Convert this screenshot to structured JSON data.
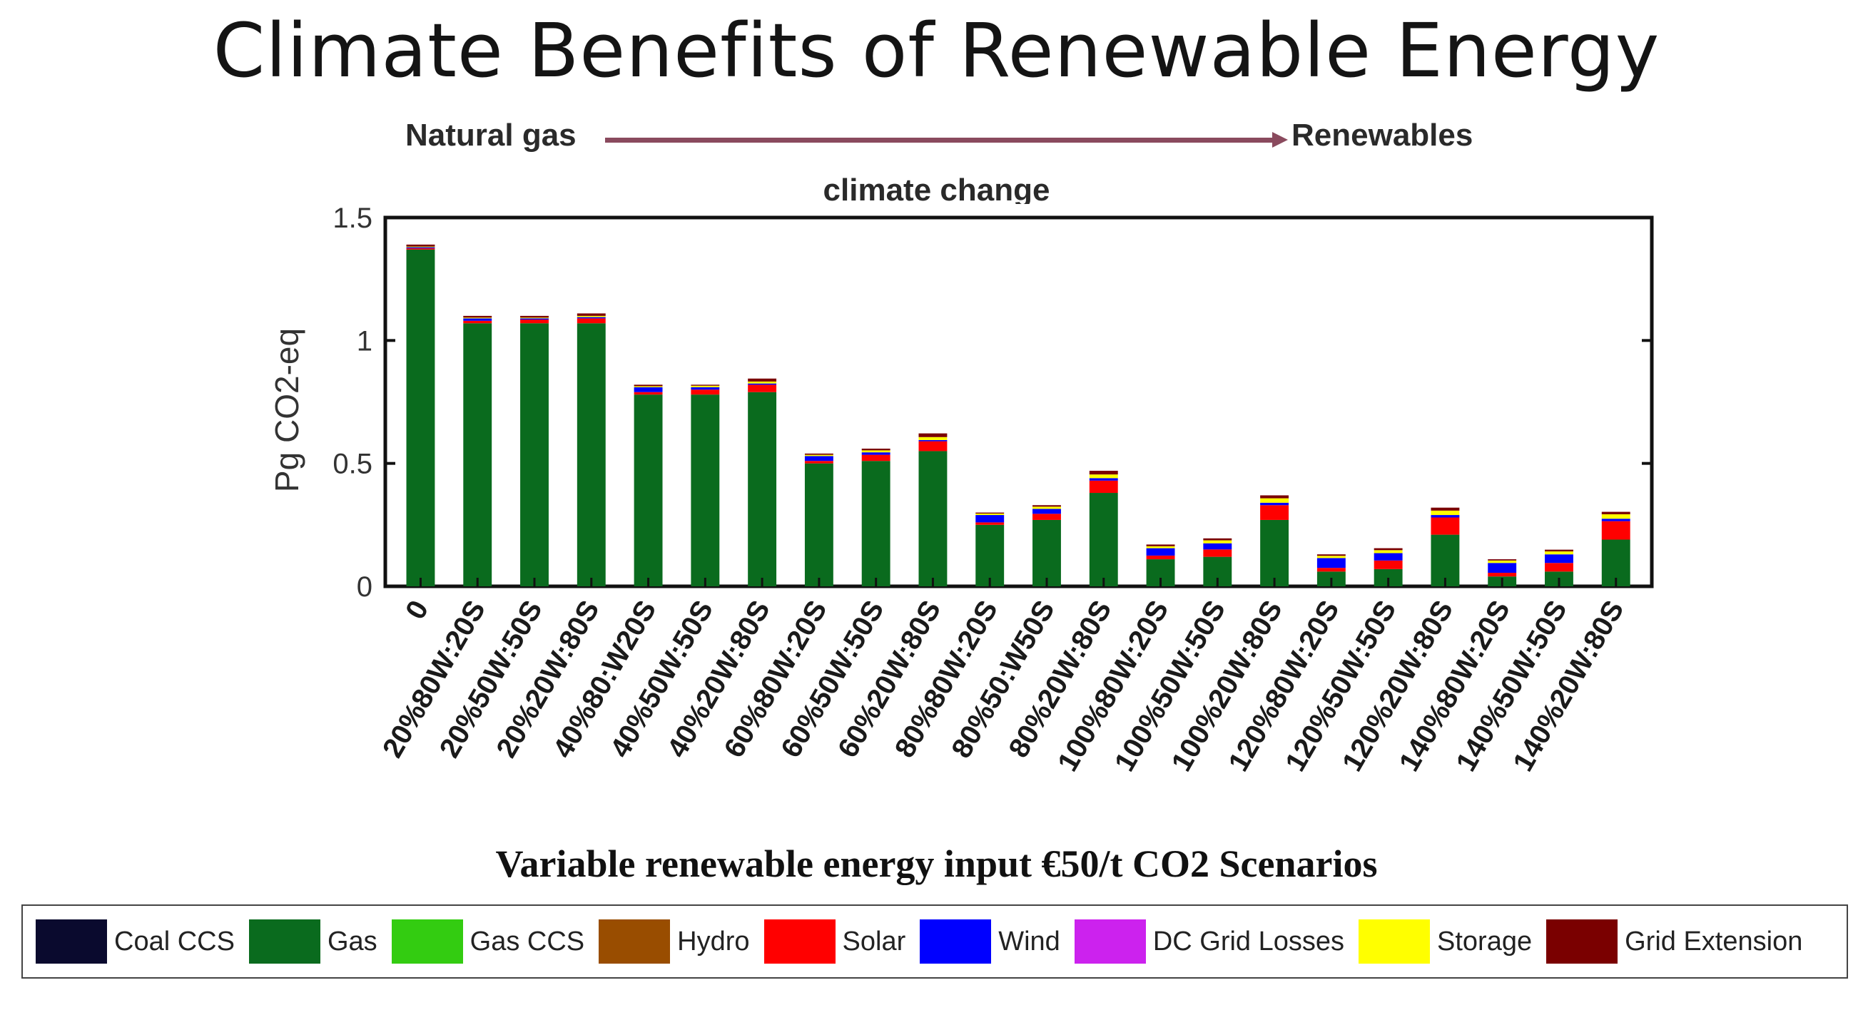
{
  "header": {
    "title": "Climate Benefits of Renewable Energy",
    "arrow_from": "Natural gas",
    "arrow_to": "Renewables",
    "subtitle": "climate change"
  },
  "chart_data": {
    "type": "bar",
    "stacked": true,
    "title": "Climate Benefits of Renewable Energy",
    "xlabel": "Variable renewable energy input €50/t CO2 Scenarios",
    "ylabel": "Pg CO2-eq",
    "ylim": [
      0,
      1.5
    ],
    "yticks": [
      "0",
      "0.5",
      "1",
      "1.5"
    ],
    "ytick_values": [
      0,
      0.5,
      1,
      1.5
    ],
    "categories": [
      "0",
      "20%80W:20S",
      "20%50W:50S",
      "20%20W:80S",
      "40%80:W20S",
      "40%50W:50S",
      "40%20W:80S",
      "60%80W:20S",
      "60%50W:50S",
      "60%20W:80S",
      "80%80W:20S",
      "80%50:W50S",
      "80%20W:80S",
      "100%80W:20S",
      "100%50W:50S",
      "100%20W:80S",
      "120%80W:20S",
      "120%50W:50S",
      "120%20W:80S",
      "140%80W:20S",
      "140%50W:50S",
      "140%20W:80S"
    ],
    "series": [
      {
        "name": "Coal CCS",
        "color": "#0a0a2e",
        "values": [
          0,
          0,
          0,
          0,
          0,
          0,
          0,
          0,
          0,
          0,
          0,
          0,
          0,
          0,
          0,
          0,
          0,
          0,
          0,
          0,
          0,
          0
        ]
      },
      {
        "name": "Gas",
        "color": "#0a6b1e",
        "values": [
          1.37,
          1.07,
          1.07,
          1.07,
          0.78,
          0.78,
          0.79,
          0.5,
          0.51,
          0.55,
          0.25,
          0.27,
          0.38,
          0.11,
          0.12,
          0.27,
          0.06,
          0.07,
          0.21,
          0.04,
          0.06,
          0.19
        ]
      },
      {
        "name": "Gas CCS",
        "color": "#33cc11",
        "values": [
          0,
          0,
          0,
          0,
          0,
          0,
          0,
          0,
          0,
          0,
          0,
          0,
          0,
          0,
          0,
          0,
          0,
          0,
          0,
          0,
          0,
          0
        ]
      },
      {
        "name": "Hydro",
        "color": "#994d00",
        "values": [
          0,
          0,
          0,
          0,
          0,
          0,
          0,
          0,
          0,
          0,
          0,
          0,
          0,
          0,
          0,
          0,
          0,
          0,
          0,
          0,
          0,
          0
        ]
      },
      {
        "name": "Solar",
        "color": "#ff0000",
        "values": [
          0.005,
          0.01,
          0.015,
          0.02,
          0.01,
          0.02,
          0.03,
          0.01,
          0.025,
          0.04,
          0.01,
          0.025,
          0.05,
          0.015,
          0.03,
          0.06,
          0.015,
          0.035,
          0.07,
          0.015,
          0.035,
          0.075
        ]
      },
      {
        "name": "Wind",
        "color": "#0000ff",
        "values": [
          0.005,
          0.01,
          0.005,
          0.005,
          0.02,
          0.01,
          0.005,
          0.02,
          0.01,
          0.005,
          0.03,
          0.02,
          0.01,
          0.03,
          0.025,
          0.01,
          0.04,
          0.03,
          0.01,
          0.04,
          0.035,
          0.01
        ]
      },
      {
        "name": "DC Grid Losses",
        "color": "#cc22ee",
        "values": [
          0,
          0,
          0,
          0,
          0,
          0,
          0,
          0,
          0,
          0,
          0,
          0,
          0,
          0,
          0,
          0,
          0,
          0,
          0,
          0,
          0,
          0
        ]
      },
      {
        "name": "Storage",
        "color": "#ffff00",
        "values": [
          0.002,
          0.003,
          0.003,
          0.005,
          0.004,
          0.006,
          0.008,
          0.005,
          0.008,
          0.012,
          0.006,
          0.009,
          0.015,
          0.008,
          0.012,
          0.018,
          0.009,
          0.012,
          0.018,
          0.01,
          0.012,
          0.018
        ]
      },
      {
        "name": "Grid Extension",
        "color": "#7a0000",
        "values": [
          0.008,
          0.007,
          0.007,
          0.01,
          0.006,
          0.004,
          0.012,
          0.005,
          0.007,
          0.015,
          0.004,
          0.006,
          0.015,
          0.007,
          0.008,
          0.012,
          0.006,
          0.008,
          0.012,
          0.005,
          0.007,
          0.01
        ]
      }
    ],
    "legend_position": "bottom",
    "grid": false
  },
  "legend": {
    "items": [
      {
        "label": "Coal CCS",
        "color": "#0a0a2e"
      },
      {
        "label": "Gas",
        "color": "#0a6b1e"
      },
      {
        "label": "Gas CCS",
        "color": "#33cc11"
      },
      {
        "label": "Hydro",
        "color": "#994d00"
      },
      {
        "label": "Solar",
        "color": "#ff0000"
      },
      {
        "label": "Wind",
        "color": "#0000ff"
      },
      {
        "label": "DC Grid Losses",
        "color": "#cc22ee"
      },
      {
        "label": "Storage",
        "color": "#ffff00"
      },
      {
        "label": "Grid Extension",
        "color": "#7a0000"
      }
    ]
  }
}
